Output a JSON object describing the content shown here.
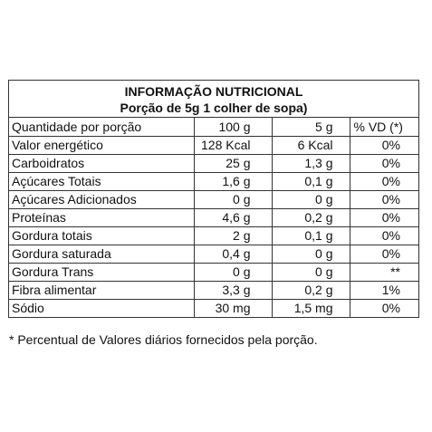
{
  "title": "INFORMAÇÃO NUTRICIONAL",
  "portion": "Porção de 5g 1 colher de sopa)",
  "columns": [
    "Quantidade por porção",
    "100 g",
    "5 g",
    "% VD (*)"
  ],
  "rows": [
    [
      "Valor energético",
      "128 Kcal",
      "6 Kcal",
      "0%"
    ],
    [
      "Carboidratos",
      "25 g",
      "1,3 g",
      "0%"
    ],
    [
      "Açúcares Totais",
      "1,6 g",
      "0,1 g",
      "0%"
    ],
    [
      "Açúcares Adicionados",
      "0 g",
      "0 g",
      "0%"
    ],
    [
      "Proteínas",
      "4,6 g",
      "0,2 g",
      "0%"
    ],
    [
      "Gordura totais",
      "2 g",
      "0,1 g",
      "0%"
    ],
    [
      "Gordura saturada",
      "0,4 g",
      "0 g",
      "0%"
    ],
    [
      "Gordura Trans",
      "0 g",
      "0 g",
      "**"
    ],
    [
      "Fibra alimentar",
      "3,3 g",
      "0,2 g",
      "1%"
    ],
    [
      "Sódio",
      "30 mg",
      "1,5 mg",
      "0%"
    ]
  ],
  "footnote": "* Percentual de Valores diários fornecidos pela porção."
}
